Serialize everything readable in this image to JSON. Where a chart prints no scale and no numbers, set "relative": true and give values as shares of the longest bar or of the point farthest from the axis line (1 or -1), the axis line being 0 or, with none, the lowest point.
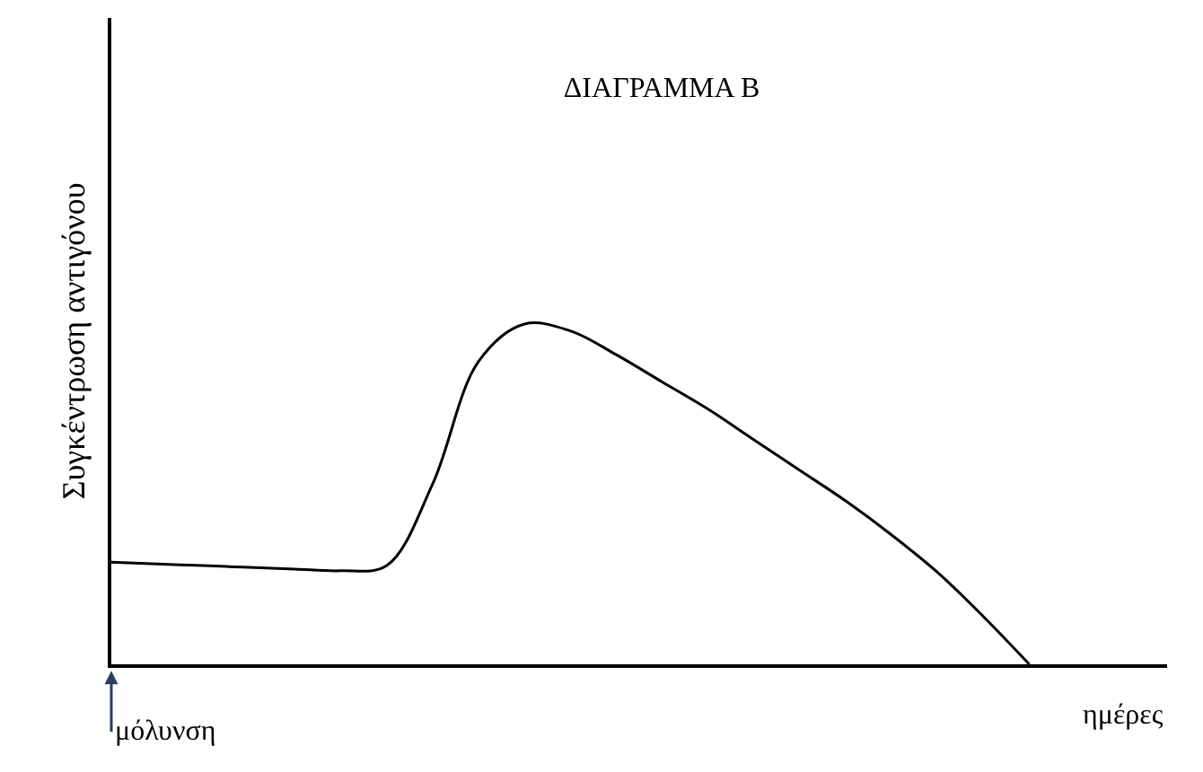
{
  "chart_data": {
    "type": "line",
    "title": "ΔΙΑΓΡΑΜΜΑ Β",
    "xlabel": "ημέρες",
    "ylabel": "Συγκέντρωση αντιγόνου",
    "relative": true,
    "color": "#000000",
    "marker": "none",
    "line_style": "solid",
    "categories": [
      null,
      null,
      null,
      null,
      null,
      null,
      null,
      null,
      null,
      null,
      null,
      null,
      null,
      null,
      null,
      null,
      null,
      null,
      null,
      null,
      null,
      null,
      null,
      null
    ],
    "values": [
      0.3,
      0.295,
      0.29,
      0.285,
      0.28,
      0.275,
      0.29,
      0.53,
      0.89,
      1.0,
      0.98,
      0.91,
      0.83,
      0.75,
      0.66,
      0.57,
      0.48,
      0.38,
      0.27,
      0.14,
      0,
      null,
      null,
      null
    ],
    "annotations": [
      "μόλυνση"
    ]
  }
}
